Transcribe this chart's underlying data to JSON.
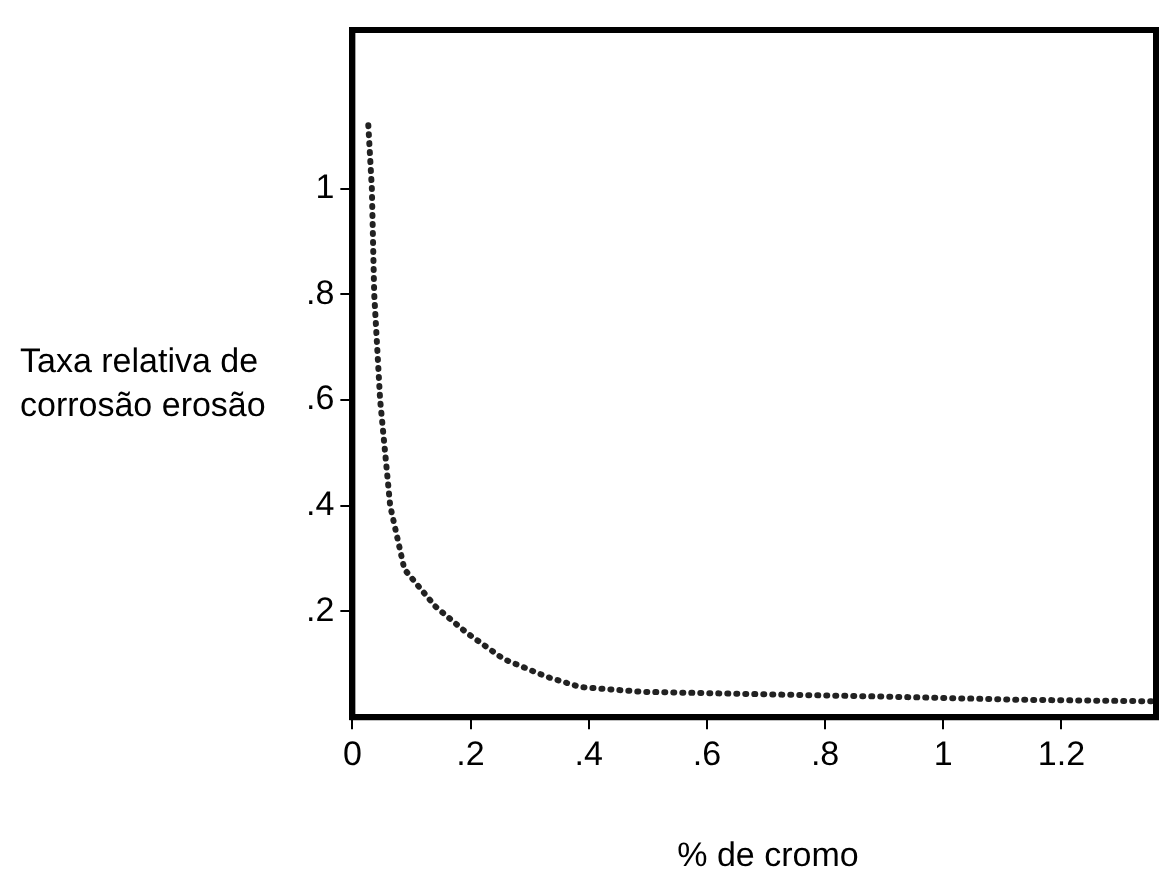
{
  "chart_data": {
    "type": "line",
    "xlabel": "% de cromo",
    "ylabel": "Taxa relativa de corrosão erosão",
    "x": [
      0.027,
      0.033,
      0.037,
      0.047,
      0.064,
      0.088,
      0.14,
      0.193,
      0.256,
      0.33,
      0.386,
      0.49,
      0.667,
      0.9,
      1.13,
      1.36
    ],
    "series": [
      {
        "color": "#222222",
        "values": [
          1.12,
          1.0,
          0.8,
          0.6,
          0.4,
          0.28,
          0.21,
          0.16,
          0.11,
          0.076,
          0.057,
          0.048,
          0.044,
          0.039,
          0.033,
          0.03
        ]
      }
    ],
    "xlim": [
      0,
      1.36
    ],
    "ylim": [
      0,
      1.3
    ],
    "xticks": [
      0,
      {
        "value": 0.2,
        "label": ".2"
      },
      {
        "value": 0.4,
        "label": ".4"
      },
      {
        "value": 0.6,
        "label": ".6"
      },
      {
        "value": 0.8,
        "label": ".8"
      },
      1,
      {
        "value": 1.2,
        "label": "1.2"
      }
    ],
    "yticks": [
      {
        "value": 0.2,
        "label": ".2"
      },
      {
        "value": 0.4,
        "label": ".4"
      },
      {
        "value": 0.6,
        "label": ".6"
      },
      {
        "value": 0.8,
        "label": ".8"
      },
      1
    ],
    "grid": false,
    "legend": false,
    "marker": "none",
    "line_style": "dotted"
  }
}
